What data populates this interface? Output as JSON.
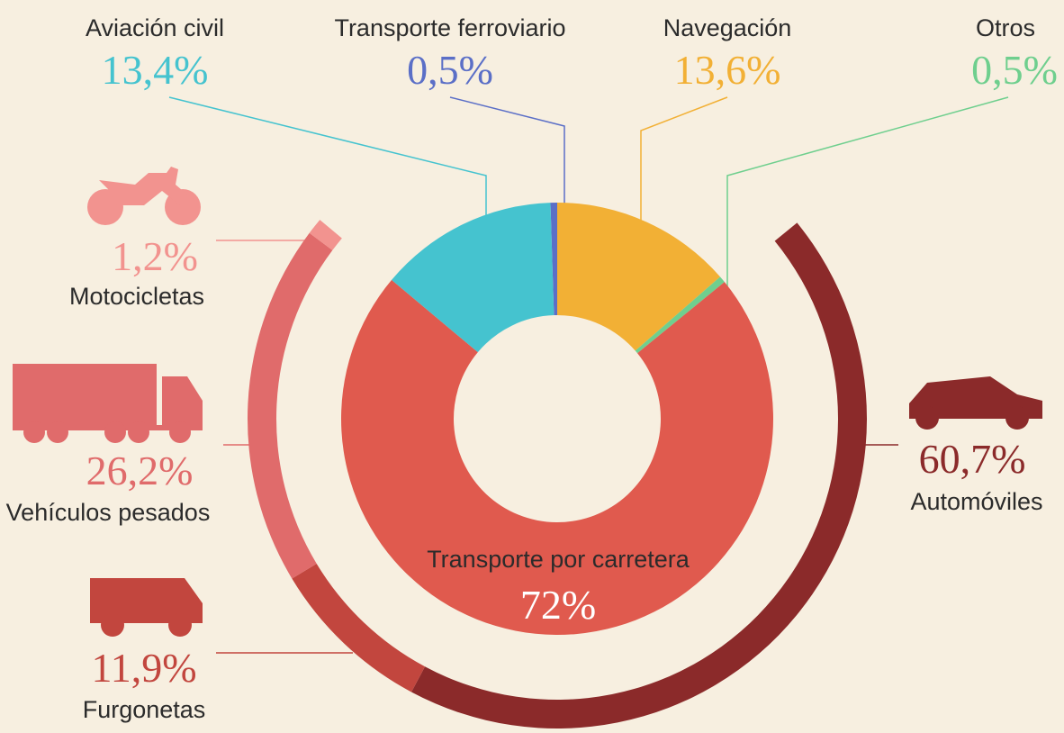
{
  "chart_data": [
    {
      "type": "pie",
      "categories": [
        "Transporte ferroviario",
        "Navegación",
        "Otros",
        "Transporte por carretera",
        "Aviación civil"
      ],
      "values": [
        0.5,
        13.6,
        0.5,
        72,
        13.4
      ],
      "value_labels": [
        "0,5%",
        "13,6%",
        "0,5%",
        "72%",
        "13,4%"
      ],
      "colors": [
        "#5b6fc7",
        "#f2b035",
        "#6fcf8e",
        "#e05a4e",
        "#45c3cf"
      ]
    },
    {
      "type": "pie",
      "categories": [
        "Automóviles",
        "Furgonetas",
        "Vehículos pesados",
        "Motocicletas"
      ],
      "values": [
        60.7,
        11.9,
        26.2,
        1.2
      ],
      "value_labels": [
        "60,7%",
        "11,9%",
        "26,2%",
        "1,2%"
      ],
      "colors": [
        "#8b2a2a",
        "#c2463e",
        "#e06b6b",
        "#f2938f"
      ]
    }
  ]
}
